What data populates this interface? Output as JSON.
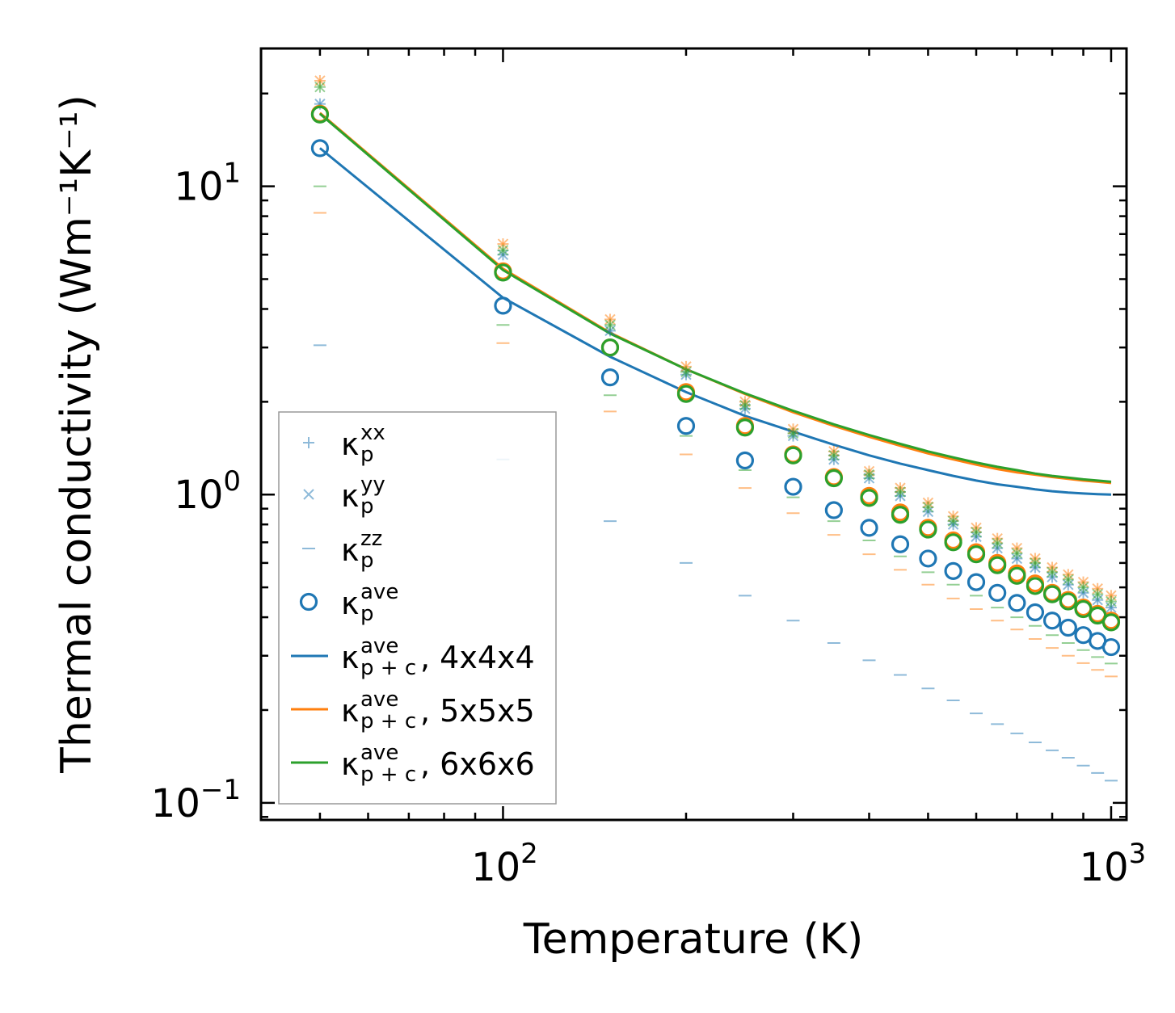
{
  "chart_data": {
    "type": "scatter",
    "xscale": "log",
    "yscale": "log",
    "xlabel": "Temperature (K)",
    "ylabel": "Thermal conductivity (Wm⁻¹K⁻¹)",
    "xlim": [
      40,
      1060
    ],
    "ylim": [
      0.088,
      28
    ],
    "x_ticks": [
      {
        "value": 100,
        "base": "10",
        "exp": "2"
      },
      {
        "value": 1000,
        "base": "10",
        "exp": "3"
      }
    ],
    "y_ticks": [
      {
        "value": 0.1,
        "base": "10",
        "exp": "−1"
      },
      {
        "value": 1,
        "base": "10",
        "exp": "0"
      },
      {
        "value": 10,
        "base": "10",
        "exp": "1"
      }
    ],
    "x": [
      50,
      100,
      150,
      200,
      250,
      300,
      350,
      400,
      450,
      500,
      550,
      600,
      650,
      700,
      750,
      800,
      850,
      900,
      950,
      1000
    ],
    "colors": {
      "blue": "#1f77b4",
      "orange": "#ff7f0e",
      "green": "#2ca02c"
    },
    "series": [
      {
        "name": "kappa_p_xx 4x4x4",
        "marker": "plus",
        "color": "#1f77b4",
        "alpha": 0.5,
        "values": [
          18.5,
          6.0,
          3.4,
          2.45,
          1.9,
          1.55,
          1.3,
          1.13,
          0.99,
          0.88,
          0.8,
          0.73,
          0.67,
          0.62,
          0.58,
          0.54,
          0.51,
          0.48,
          0.455,
          0.43
        ]
      },
      {
        "name": "kappa_p_yy 4x4x4",
        "marker": "x",
        "color": "#1f77b4",
        "alpha": 0.5,
        "values": [
          18.5,
          6.0,
          3.4,
          2.45,
          1.9,
          1.55,
          1.3,
          1.13,
          0.99,
          0.88,
          0.8,
          0.73,
          0.67,
          0.62,
          0.58,
          0.54,
          0.51,
          0.48,
          0.455,
          0.43
        ]
      },
      {
        "name": "kappa_p_zz 4x4x4",
        "marker": "dash",
        "color": "#1f77b4",
        "alpha": 0.5,
        "values": [
          3.05,
          1.3,
          0.82,
          0.6,
          0.47,
          0.39,
          0.33,
          0.29,
          0.26,
          0.235,
          0.215,
          0.195,
          0.18,
          0.168,
          0.157,
          0.148,
          0.14,
          0.132,
          0.125,
          0.118
        ]
      },
      {
        "name": "kappa_p_ave 4x4x4",
        "marker": "circle",
        "color": "#1f77b4",
        "alpha": 1,
        "values": [
          13.3,
          4.1,
          2.4,
          1.67,
          1.29,
          1.06,
          0.89,
          0.78,
          0.69,
          0.62,
          0.565,
          0.52,
          0.48,
          0.445,
          0.415,
          0.39,
          0.37,
          0.35,
          0.335,
          0.32
        ]
      },
      {
        "name": "kappa_p_xx 5x5x5",
        "marker": "plus",
        "color": "#ff7f0e",
        "alpha": 0.5,
        "values": [
          22.0,
          6.5,
          3.7,
          2.6,
          2.0,
          1.63,
          1.38,
          1.19,
          1.05,
          0.94,
          0.85,
          0.78,
          0.72,
          0.67,
          0.62,
          0.58,
          0.55,
          0.52,
          0.495,
          0.47
        ]
      },
      {
        "name": "kappa_p_yy 5x5x5",
        "marker": "x",
        "color": "#ff7f0e",
        "alpha": 0.5,
        "values": [
          22.0,
          6.5,
          3.7,
          2.6,
          2.0,
          1.63,
          1.38,
          1.19,
          1.05,
          0.94,
          0.85,
          0.78,
          0.72,
          0.67,
          0.62,
          0.58,
          0.55,
          0.52,
          0.495,
          0.47
        ]
      },
      {
        "name": "kappa_p_zz 5x5x5",
        "marker": "dash",
        "color": "#ff7f0e",
        "alpha": 0.5,
        "values": [
          8.2,
          3.1,
          1.86,
          1.35,
          1.05,
          0.87,
          0.74,
          0.64,
          0.57,
          0.51,
          0.46,
          0.425,
          0.39,
          0.365,
          0.34,
          0.318,
          0.3,
          0.284,
          0.27,
          0.257
        ]
      },
      {
        "name": "kappa_p_ave 5x5x5",
        "marker": "circle",
        "color": "#ff7f0e",
        "alpha": 1,
        "values": [
          17.2,
          5.3,
          3.0,
          2.15,
          1.67,
          1.35,
          1.14,
          0.99,
          0.875,
          0.78,
          0.71,
          0.65,
          0.6,
          0.555,
          0.515,
          0.48,
          0.455,
          0.43,
          0.41,
          0.39
        ]
      },
      {
        "name": "kappa_p_xx 6x6x6",
        "marker": "plus",
        "color": "#2ca02c",
        "alpha": 0.5,
        "values": [
          21.0,
          6.2,
          3.55,
          2.5,
          1.95,
          1.58,
          1.34,
          1.16,
          1.02,
          0.91,
          0.82,
          0.755,
          0.695,
          0.645,
          0.6,
          0.56,
          0.53,
          0.5,
          0.475,
          0.45
        ]
      },
      {
        "name": "kappa_p_yy 6x6x6",
        "marker": "x",
        "color": "#2ca02c",
        "alpha": 0.5,
        "values": [
          21.0,
          6.2,
          3.55,
          2.5,
          1.95,
          1.58,
          1.34,
          1.16,
          1.02,
          0.91,
          0.82,
          0.755,
          0.695,
          0.645,
          0.6,
          0.56,
          0.53,
          0.5,
          0.475,
          0.45
        ]
      },
      {
        "name": "kappa_p_zz 6x6x6",
        "marker": "dash",
        "color": "#2ca02c",
        "alpha": 0.5,
        "values": [
          10.0,
          3.55,
          2.1,
          1.55,
          1.2,
          0.98,
          0.82,
          0.71,
          0.63,
          0.56,
          0.51,
          0.47,
          0.43,
          0.4,
          0.375,
          0.35,
          0.33,
          0.313,
          0.297,
          0.283
        ]
      },
      {
        "name": "kappa_p_ave 6x6x6",
        "marker": "circle",
        "color": "#2ca02c",
        "alpha": 1,
        "values": [
          17.1,
          5.25,
          3.0,
          2.12,
          1.65,
          1.34,
          1.13,
          0.975,
          0.86,
          0.77,
          0.7,
          0.64,
          0.59,
          0.545,
          0.505,
          0.475,
          0.45,
          0.425,
          0.405,
          0.385
        ]
      },
      {
        "name": "kappa_p+c_ave 4x4x4",
        "marker": "line",
        "color": "#1f77b4",
        "alpha": 1,
        "values": [
          13.3,
          4.35,
          2.8,
          2.15,
          1.8,
          1.6,
          1.45,
          1.34,
          1.26,
          1.2,
          1.15,
          1.11,
          1.08,
          1.06,
          1.04,
          1.025,
          1.015,
          1.008,
          1.003,
          1.0
        ]
      },
      {
        "name": "kappa_p+c_ave 5x5x5",
        "marker": "line",
        "color": "#ff7f0e",
        "alpha": 1,
        "values": [
          17.3,
          5.4,
          3.35,
          2.55,
          2.12,
          1.85,
          1.67,
          1.54,
          1.44,
          1.36,
          1.3,
          1.25,
          1.21,
          1.18,
          1.16,
          1.14,
          1.125,
          1.11,
          1.1,
          1.09
        ]
      },
      {
        "name": "kappa_p+c_ave 6x6x6",
        "marker": "line",
        "color": "#2ca02c",
        "alpha": 1,
        "values": [
          17.2,
          5.35,
          3.33,
          2.55,
          2.13,
          1.87,
          1.69,
          1.56,
          1.46,
          1.38,
          1.32,
          1.27,
          1.23,
          1.2,
          1.17,
          1.15,
          1.135,
          1.12,
          1.11,
          1.1
        ]
      }
    ],
    "legend": {
      "location": "lower-left",
      "entries": [
        {
          "marker": "plus",
          "color": "#1f77b4",
          "symbol": "κ",
          "sub": "p",
          "sup": "xx",
          "suffix": ""
        },
        {
          "marker": "x",
          "color": "#1f77b4",
          "symbol": "κ",
          "sub": "p",
          "sup": "yy",
          "suffix": ""
        },
        {
          "marker": "dash",
          "color": "#1f77b4",
          "symbol": "κ",
          "sub": "p",
          "sup": "zz",
          "suffix": ""
        },
        {
          "marker": "circle",
          "color": "#1f77b4",
          "symbol": "κ",
          "sub": "p",
          "sup": "ave",
          "suffix": ""
        },
        {
          "marker": "line",
          "color": "#1f77b4",
          "symbol": "κ",
          "sub": "p + c",
          "sup": "ave",
          "suffix": ", 4x4x4"
        },
        {
          "marker": "line",
          "color": "#ff7f0e",
          "symbol": "κ",
          "sub": "p + c",
          "sup": "ave",
          "suffix": ", 5x5x5"
        },
        {
          "marker": "line",
          "color": "#2ca02c",
          "symbol": "κ",
          "sub": "p + c",
          "sup": "ave",
          "suffix": ", 6x6x6"
        }
      ]
    }
  }
}
